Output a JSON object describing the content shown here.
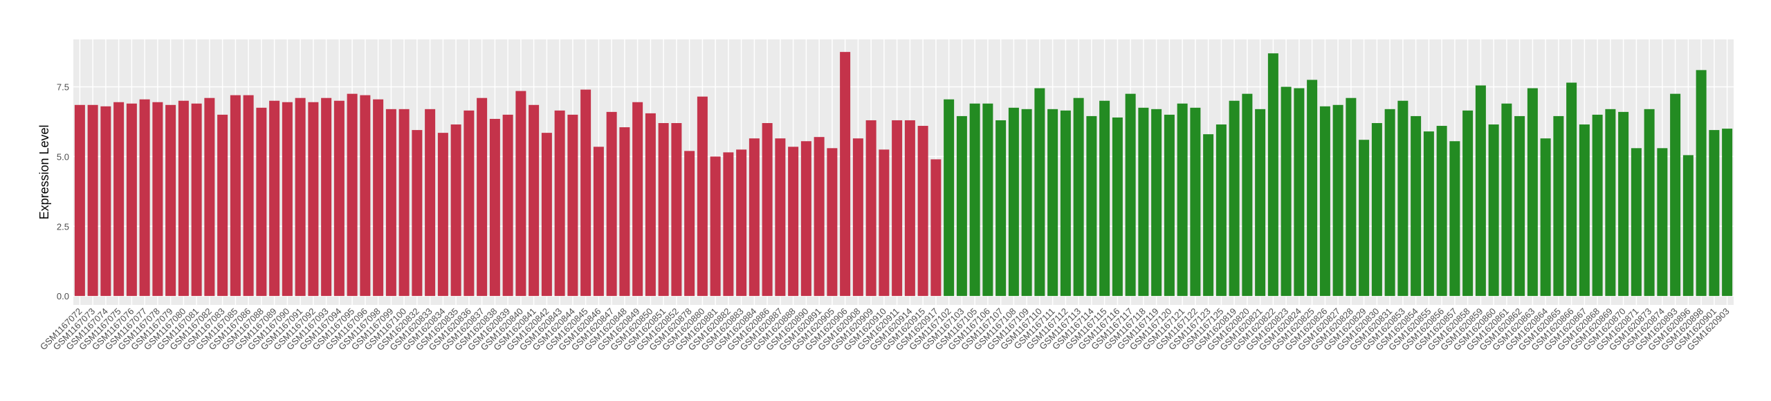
{
  "chart_data": {
    "type": "bar",
    "y_label": "Expression Level",
    "categories": [
      "GSM1167072",
      "GSM1167073",
      "GSM1167074",
      "GSM1167075",
      "GSM1167076",
      "GSM1167077",
      "GSM1167078",
      "GSM1167079",
      "GSM1167080",
      "GSM1167081",
      "GSM1167082",
      "GSM1167083",
      "GSM1167085",
      "GSM1167086",
      "GSM1167088",
      "GSM1167089",
      "GSM1167090",
      "GSM1167091",
      "GSM1167092",
      "GSM1167093",
      "GSM1167094",
      "GSM1167095",
      "GSM1167096",
      "GSM1167098",
      "GSM1167099",
      "GSM1167100",
      "GSM1620832",
      "GSM1620833",
      "GSM1620834",
      "GSM1620835",
      "GSM1620836",
      "GSM1620837",
      "GSM1620838",
      "GSM1620839",
      "GSM1620840",
      "GSM1620841",
      "GSM1620842",
      "GSM1620843",
      "GSM1620844",
      "GSM1620845",
      "GSM1620846",
      "GSM1620847",
      "GSM1620848",
      "GSM1620849",
      "GSM1620850",
      "GSM1620851",
      "GSM1620852",
      "GSM1620878",
      "GSM1620880",
      "GSM1620881",
      "GSM1620882",
      "GSM1620883",
      "GSM1620884",
      "GSM1620886",
      "GSM1620887",
      "GSM1620888",
      "GSM1620890",
      "GSM1620891",
      "GSM1620905",
      "GSM1620906",
      "GSM1620908",
      "GSM1620909",
      "GSM1620910",
      "GSM1620911",
      "GSM1620914",
      "GSM1620915",
      "GSM1620917",
      "GSM1167102",
      "GSM1167103",
      "GSM1167105",
      "GSM1167106",
      "GSM1167107",
      "GSM1167108",
      "GSM1167109",
      "GSM1167110",
      "GSM1167111",
      "GSM1167112",
      "GSM1167113",
      "GSM1167114",
      "GSM1167115",
      "GSM1167116",
      "GSM1167117",
      "GSM1167118",
      "GSM1167119",
      "GSM1167120",
      "GSM1167121",
      "GSM1167122",
      "GSM1167123",
      "GSM1167125",
      "GSM1620819",
      "GSM1620820",
      "GSM1620821",
      "GSM1620822",
      "GSM1620823",
      "GSM1620824",
      "GSM1620825",
      "GSM1620826",
      "GSM1620827",
      "GSM1620828",
      "GSM1620829",
      "GSM1620830",
      "GSM1620831",
      "GSM1620853",
      "GSM1620854",
      "GSM1620855",
      "GSM1620856",
      "GSM1620857",
      "GSM1620858",
      "GSM1620859",
      "GSM1620860",
      "GSM1620861",
      "GSM1620862",
      "GSM1620863",
      "GSM1620864",
      "GSM1620865",
      "GSM1620866",
      "GSM1620867",
      "GSM1620868",
      "GSM1620869",
      "GSM1620870",
      "GSM1620871",
      "GSM1620873",
      "GSM1620874",
      "GSM1620893",
      "GSM1620896",
      "GSM1620898",
      "GSM1620901",
      "GSM1620903"
    ],
    "series": [
      {
        "color": "#c4334a",
        "values": [
          6.85,
          6.85,
          6.8,
          6.95,
          6.9,
          7.05,
          6.95,
          6.85,
          7.0,
          6.9,
          7.1,
          6.5,
          7.2,
          7.2,
          6.75,
          7.0,
          6.95,
          7.1,
          6.95,
          7.1,
          7.0,
          7.25,
          7.2,
          7.05,
          6.7,
          6.7,
          5.95,
          6.7,
          5.85,
          6.15,
          6.65,
          7.1,
          6.35,
          6.5,
          7.35,
          6.85,
          5.85,
          6.65,
          6.5,
          7.4,
          5.35,
          6.6,
          6.05,
          6.95,
          6.55,
          6.2,
          6.2,
          5.2,
          7.15,
          5.0,
          5.15,
          5.25,
          5.65,
          6.2,
          5.65,
          5.35,
          5.55,
          5.7,
          5.3,
          8.75,
          5.65,
          6.3,
          5.25,
          6.3,
          6.3,
          6.1,
          4.9,
          null,
          null,
          null,
          null,
          null,
          null,
          null,
          null,
          null,
          null,
          null,
          null,
          null,
          null,
          null,
          null,
          null,
          null,
          null,
          null,
          null,
          null,
          null,
          null,
          null,
          null,
          null,
          null,
          null,
          null,
          null,
          null,
          null,
          null,
          null,
          null,
          null,
          null,
          null,
          null,
          null,
          null,
          null,
          null,
          null,
          null,
          null,
          null,
          null,
          null,
          null,
          null,
          null,
          null,
          null,
          null,
          null,
          null,
          null,
          null,
          null
        ]
      },
      {
        "color": "#238b22",
        "values": [
          null,
          null,
          null,
          null,
          null,
          null,
          null,
          null,
          null,
          null,
          null,
          null,
          null,
          null,
          null,
          null,
          null,
          null,
          null,
          null,
          null,
          null,
          null,
          null,
          null,
          null,
          null,
          null,
          null,
          null,
          null,
          null,
          null,
          null,
          null,
          null,
          null,
          null,
          null,
          null,
          null,
          null,
          null,
          null,
          null,
          null,
          null,
          null,
          null,
          null,
          null,
          null,
          null,
          null,
          null,
          null,
          null,
          null,
          null,
          null,
          null,
          null,
          null,
          null,
          null,
          null,
          null,
          7.05,
          6.45,
          6.9,
          6.9,
          6.3,
          6.75,
          6.7,
          7.45,
          6.7,
          6.65,
          7.1,
          6.45,
          7.0,
          6.4,
          7.25,
          6.75,
          6.7,
          6.5,
          6.9,
          6.75,
          5.8,
          6.15,
          7.0,
          7.25,
          6.7,
          8.7,
          7.5,
          7.45,
          7.75,
          6.8,
          6.85,
          7.1,
          5.6,
          6.2,
          6.7,
          7.0,
          6.45,
          5.9,
          6.1,
          5.55,
          6.65,
          7.55,
          6.15,
          6.9,
          6.45,
          7.45,
          5.65,
          6.45,
          7.65,
          6.15,
          6.5,
          6.7,
          6.6,
          5.3,
          6.7,
          5.3,
          7.25,
          5.05,
          8.1,
          5.95,
          6.0
        ]
      }
    ],
    "ylim": [
      -0.32,
      9.2
    ],
    "yticks": [
      {
        "value": 0,
        "label": "0.0"
      },
      {
        "value": 2.5,
        "label": "2.5"
      },
      {
        "value": 5,
        "label": "5.0"
      },
      {
        "value": 7.5,
        "label": "7.5"
      }
    ],
    "grid": true
  }
}
